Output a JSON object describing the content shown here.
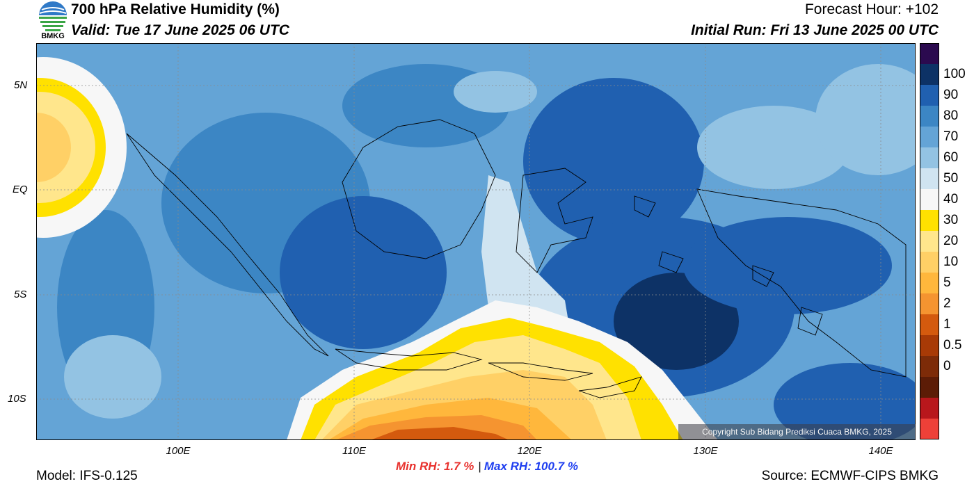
{
  "header": {
    "title": "700 hPa Relative Humidity (%)",
    "valid": "Valid: Tue 17 June 2025 06 UTC",
    "forecast_hour": "Forecast Hour: +102",
    "initial_run": "Initial Run: Fri 13 June 2025 00 UTC"
  },
  "logo": {
    "text": "BMKG"
  },
  "map": {
    "lat_range": [
      -12,
      7
    ],
    "lon_range": [
      92,
      142
    ],
    "y_ticks": [
      "5N",
      "EQ",
      "5S",
      "10S"
    ],
    "x_ticks": [
      "100E",
      "110E",
      "120E",
      "130E",
      "140E"
    ],
    "copyright": "Copyright Sub Bidang Prediksi Cuaca BMKG, 2025"
  },
  "colorbar": {
    "labels": [
      "100",
      "90",
      "80",
      "70",
      "60",
      "50",
      "40",
      "30",
      "20",
      "10",
      "5",
      "2",
      "1",
      "0.5",
      "0"
    ],
    "colors": [
      "#2b0a4f",
      "#0d3266",
      "#2060b0",
      "#3c86c4",
      "#64a4d6",
      "#93c3e3",
      "#d0e4f1",
      "#f7f7f7",
      "#ffe100",
      "#ffe68c",
      "#ffd066",
      "#ffb73c",
      "#f59430",
      "#d45a0e",
      "#a83a06",
      "#7d2b08",
      "#5c1c06",
      "#b8171c",
      "#ee4038"
    ]
  },
  "footer": {
    "model": "Model: IFS-0.125",
    "source": "Source: ECMWF-CIPS BMKG",
    "min_rh": "Min RH:   1.7 %",
    "separator": "|",
    "max_rh": "Max RH: 100.7 %"
  }
}
